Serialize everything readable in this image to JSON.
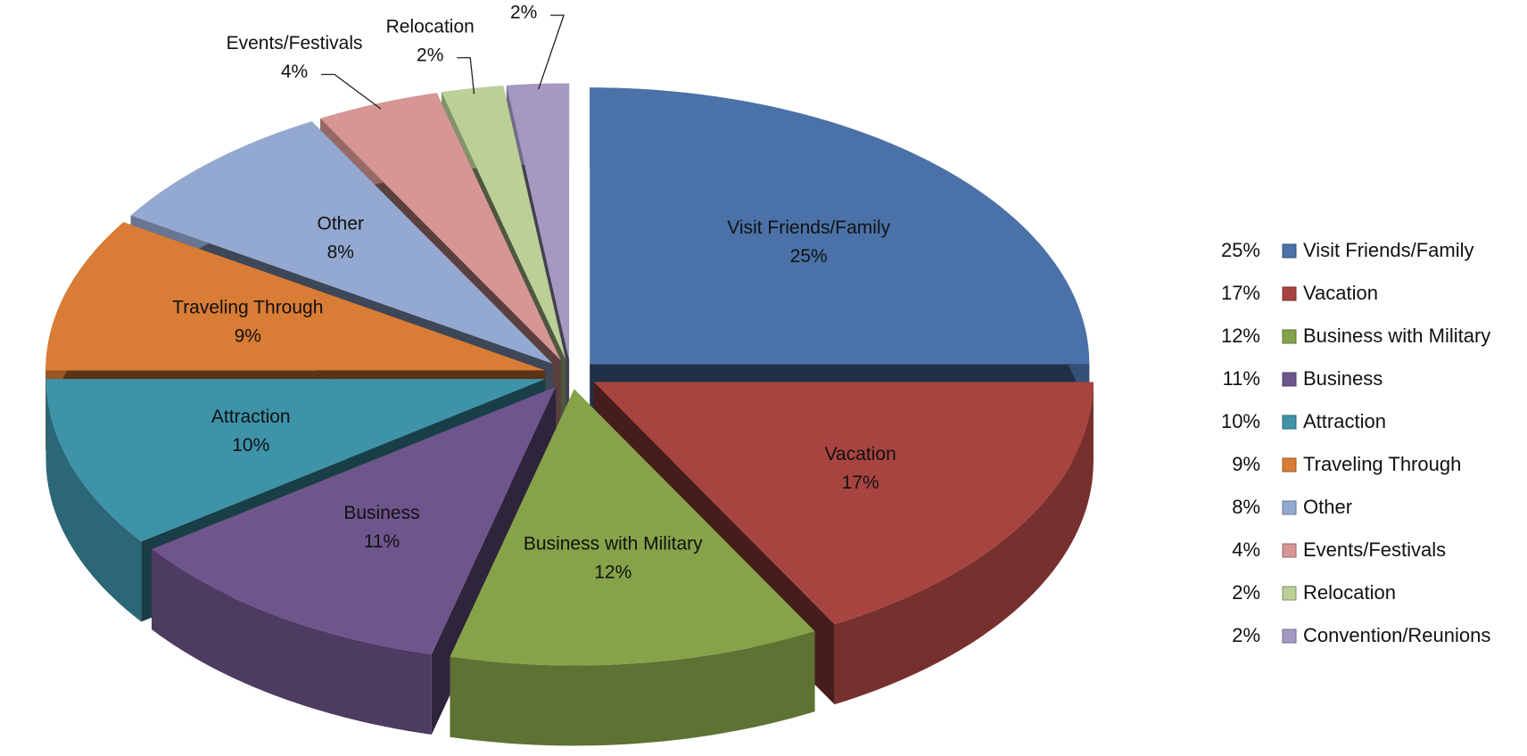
{
  "chart_data": {
    "type": "pie3d",
    "categories": [
      "Visit Friends/Family",
      "Vacation",
      "Business with Military",
      "Business",
      "Attraction",
      "Traveling Through",
      "Other",
      "Events/Festivals",
      "Relocation",
      "Convention/Reunions"
    ],
    "values": [
      25,
      17,
      12,
      11,
      10,
      9,
      8,
      4,
      2,
      2
    ],
    "value_labels": [
      "25%",
      "17%",
      "12%",
      "11%",
      "10%",
      "9%",
      "8%",
      "4%",
      "2%",
      "2%"
    ],
    "colors": [
      "#4a72a8",
      "#a84440",
      "#86a34a",
      "#6e558c",
      "#3e93a9",
      "#d97c35",
      "#94a9d1",
      "#d69694",
      "#bad097",
      "#a599c2"
    ],
    "legend": "right"
  }
}
